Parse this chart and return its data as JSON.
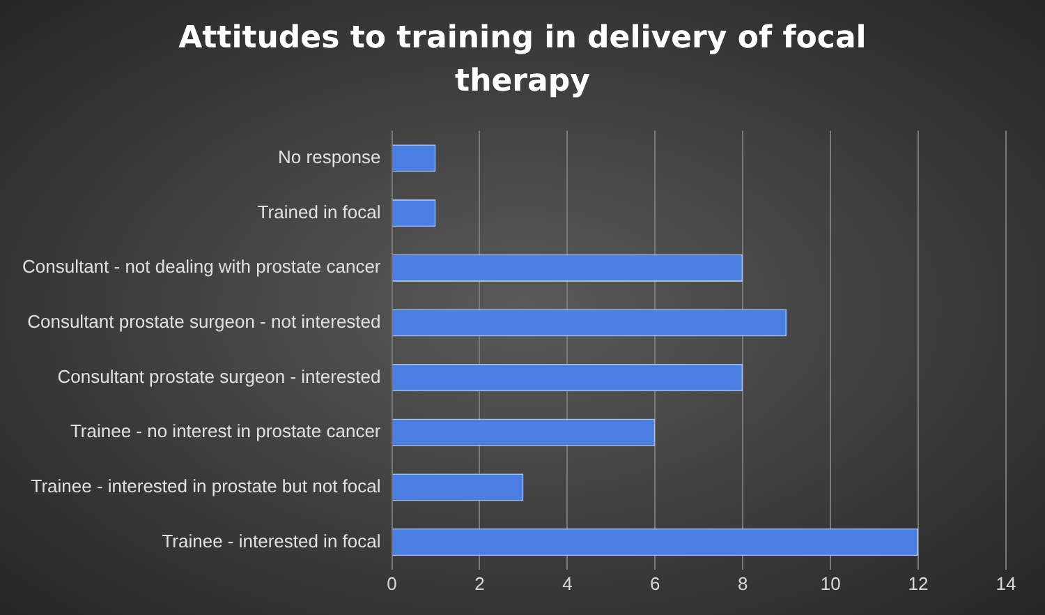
{
  "chart_data": {
    "type": "bar",
    "orientation": "horizontal",
    "title": "Attitudes to training in delivery of focal therapy",
    "categories": [
      "No response",
      "Trained in focal",
      "Consultant - not dealing with prostate cancer",
      "Consultant prostate surgeon - not interested",
      "Consultant prostate surgeon - interested",
      "Trainee - no interest in prostate cancer",
      "Trainee - interested in prostate but not focal",
      "Trainee - interested in focal"
    ],
    "values": [
      1,
      1,
      8,
      9,
      8,
      6,
      3,
      12
    ],
    "color": "#4a7ee0",
    "xlim": [
      0,
      14
    ],
    "xticks": [
      0,
      2,
      4,
      6,
      8,
      10,
      12,
      14
    ],
    "grid": "x",
    "legend": false
  }
}
